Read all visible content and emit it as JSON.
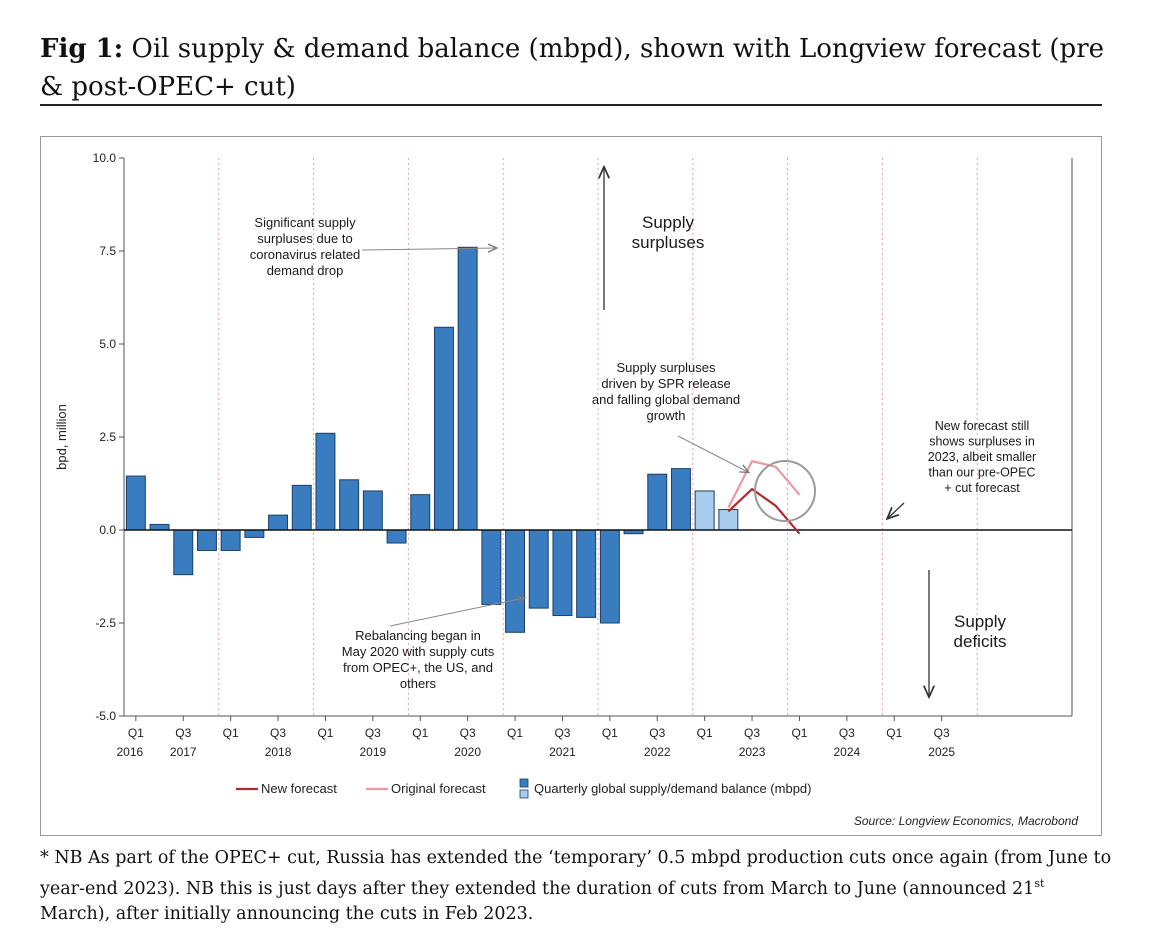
{
  "header": {
    "fig_label": "Fig 1:",
    "fig_title": " Oil supply & demand balance (mbpd), shown with Longview forecast (pre & post-OPEC+ cut)"
  },
  "footer": {
    "source": "Source: Longview Economics, Macrobond",
    "note_part1": "* NB As part of the OPEC+ cut, Russia has extended the ‘temporary’ 0.5 mbpd production cuts once again (from June to year-end 2023). NB this is just days after they extended the duration of cuts from March to June (announced 21",
    "note_sup": "st",
    "note_part2": " March), after initially announcing the cuts in Feb 2023."
  },
  "chart_data": {
    "type": "bar",
    "title": "",
    "xlabel": "",
    "ylabel": "bpd, million",
    "ylim": [
      -5.0,
      10.0
    ],
    "y_ticks": [
      "10.0",
      "7.5",
      "5.0",
      "2.5",
      "0.0",
      "-2.5",
      "-5.0"
    ],
    "grid": "vertical dotted lines at each Q1",
    "x_tick_labels": [
      {
        "q": "Q1",
        "year": "2016"
      },
      {
        "q": "Q3",
        "year": "2017"
      },
      {
        "q": "Q1",
        "year": ""
      },
      {
        "q": "Q3",
        "year": "2018"
      },
      {
        "q": "Q1",
        "year": ""
      },
      {
        "q": "Q3",
        "year": "2019"
      },
      {
        "q": "Q1",
        "year": ""
      },
      {
        "q": "Q3",
        "year": "2020"
      },
      {
        "q": "Q1",
        "year": ""
      },
      {
        "q": "Q3",
        "year": "2021"
      },
      {
        "q": "Q1",
        "year": ""
      },
      {
        "q": "Q3",
        "year": "2022"
      },
      {
        "q": "Q1",
        "year": ""
      },
      {
        "q": "Q3",
        "year": "2023"
      },
      {
        "q": "Q1",
        "year": ""
      },
      {
        "q": "Q3",
        "year": "2024"
      },
      {
        "q": "Q1",
        "year": ""
      },
      {
        "q": "Q3",
        "year": "2025"
      }
    ],
    "series": [
      {
        "name": "Quarterly global supply/demand balance (mbpd)",
        "color": "#3a7cc0",
        "forecast_color": "#a8cdee",
        "values": [
          {
            "quarter": "2016Q1",
            "value": 1.45
          },
          {
            "quarter": "2016Q2",
            "value": 0.15
          },
          {
            "quarter": "2016Q3",
            "value": -1.2
          },
          {
            "quarter": "2016Q4",
            "value": -0.55
          },
          {
            "quarter": "2017Q1",
            "value": -0.55
          },
          {
            "quarter": "2017Q2",
            "value": -0.2
          },
          {
            "quarter": "2017Q3",
            "value": 0.4
          },
          {
            "quarter": "2017Q4",
            "value": 1.2
          },
          {
            "quarter": "2018Q1",
            "value": 2.6
          },
          {
            "quarter": "2018Q2",
            "value": 1.35
          },
          {
            "quarter": "2018Q3",
            "value": 1.05
          },
          {
            "quarter": "2018Q4",
            "value": -0.35
          },
          {
            "quarter": "2019Q1",
            "value": 0.95
          },
          {
            "quarter": "2019Q2",
            "value": 5.45
          },
          {
            "quarter": "2019Q3",
            "value": 7.6
          },
          {
            "quarter": "2019Q4",
            "value": -2.0
          },
          {
            "quarter": "2020Q1",
            "value": -2.75
          },
          {
            "quarter": "2020Q2",
            "value": -2.1
          },
          {
            "quarter": "2020Q3",
            "value": -2.3
          },
          {
            "quarter": "2020Q4",
            "value": -2.35
          },
          {
            "quarter": "2021Q1",
            "value": -2.5
          },
          {
            "quarter": "2021Q2",
            "value": -0.1
          },
          {
            "quarter": "2021Q3",
            "value": 1.5
          },
          {
            "quarter": "2021Q4",
            "value": 1.65
          },
          {
            "quarter": "2022Q1",
            "value": 1.05,
            "highlight": true
          },
          {
            "quarter": "2022Q2",
            "value": 0.55,
            "highlight": true
          }
        ]
      },
      {
        "name": "New forecast",
        "color": "#b22a2a",
        "points": [
          {
            "quarter": "2022Q2",
            "value": 0.5
          },
          {
            "quarter": "2022Q3",
            "value": 1.1
          },
          {
            "quarter": "2022Q4",
            "value": 0.65
          },
          {
            "quarter": "2023Q1",
            "value": -0.1
          }
        ]
      },
      {
        "name": "Original forecast",
        "color": "#e99aa0",
        "points": [
          {
            "quarter": "2022Q2",
            "value": 0.6
          },
          {
            "quarter": "2022Q3",
            "value": 1.85
          },
          {
            "quarter": "2022Q4",
            "value": 1.7
          },
          {
            "quarter": "2023Q1",
            "value": 0.95
          }
        ]
      }
    ],
    "annotations": [
      {
        "lines": [
          "Significant supply",
          "surpluses due to",
          "coronavirus related",
          "demand drop"
        ]
      },
      {
        "lines": [
          "Supply",
          "surpluses"
        ]
      },
      {
        "lines": [
          "Supply surpluses",
          "driven by SPR release",
          "and falling global demand",
          "growth"
        ]
      },
      {
        "lines": [
          "New forecast still",
          "shows surpluses in",
          "2023, albeit smaller",
          "than our pre-OPEC",
          "+ cut forecast"
        ]
      },
      {
        "lines": [
          "Rebalancing began in",
          "May 2020 with supply cuts",
          "from OPEC+, the US, and",
          "others"
        ]
      },
      {
        "lines": [
          "Supply",
          "deficits"
        ]
      }
    ],
    "legend": {
      "position": "bottom-center",
      "items": [
        "New forecast",
        "Original forecast",
        "Quarterly global supply/demand balance (mbpd)"
      ]
    }
  }
}
